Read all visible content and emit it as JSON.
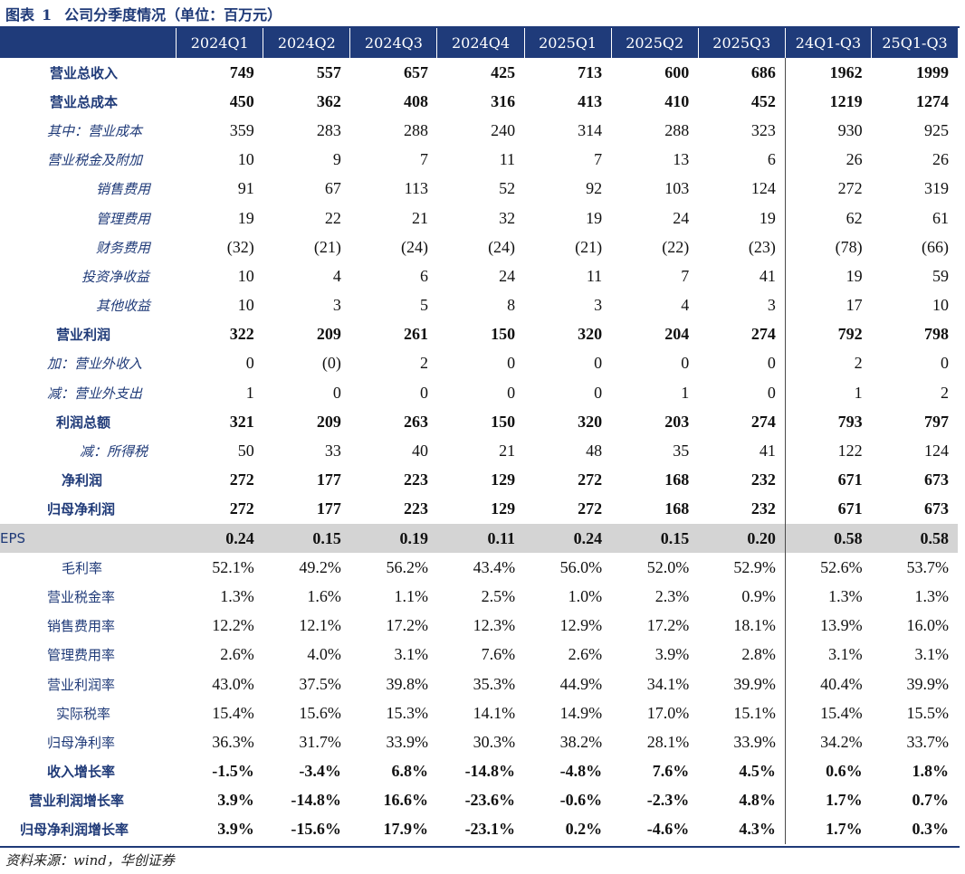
{
  "title": {
    "prefix": "图表",
    "number": "1",
    "text": "公司分季度情况（单位：百万元）"
  },
  "columns": [
    "2024Q1",
    "2024Q2",
    "2024Q3",
    "2024Q4",
    "2025Q1",
    "2025Q2",
    "2025Q3",
    "24Q1-Q3",
    "25Q1-Q3"
  ],
  "rows": [
    {
      "label": "营业总收入",
      "style": "bold",
      "indent": 55,
      "values": [
        "749",
        "557",
        "657",
        "425",
        "713",
        "600",
        "686",
        "1962",
        "1999"
      ]
    },
    {
      "label": "营业总成本",
      "style": "bold",
      "indent": 55,
      "values": [
        "450",
        "362",
        "408",
        "316",
        "413",
        "410",
        "452",
        "1219",
        "1274"
      ]
    },
    {
      "label": "其中：营业成本",
      "style": "italic",
      "indent": 52,
      "values": [
        "359",
        "283",
        "288",
        "240",
        "314",
        "288",
        "323",
        "930",
        "925"
      ]
    },
    {
      "label": "营业税金及附加",
      "style": "italic",
      "indent": 52,
      "values": [
        "10",
        "9",
        "7",
        "11",
        "7",
        "13",
        "6",
        "26",
        "26"
      ]
    },
    {
      "label": "销售费用",
      "style": "italic",
      "indent": 106,
      "values": [
        "91",
        "67",
        "113",
        "52",
        "92",
        "103",
        "124",
        "272",
        "319"
      ]
    },
    {
      "label": "管理费用",
      "style": "italic",
      "indent": 106,
      "values": [
        "19",
        "22",
        "21",
        "32",
        "19",
        "24",
        "19",
        "62",
        "61"
      ]
    },
    {
      "label": "财务费用",
      "style": "italic",
      "indent": 106,
      "values": [
        "(32)",
        "(21)",
        "(24)",
        "(24)",
        "(21)",
        "(22)",
        "(23)",
        "(78)",
        "(66)"
      ]
    },
    {
      "label": "投资净收益",
      "style": "italic",
      "indent": 90,
      "values": [
        "10",
        "4",
        "6",
        "24",
        "11",
        "7",
        "41",
        "19",
        "59"
      ]
    },
    {
      "label": "其他收益",
      "style": "italic",
      "indent": 106,
      "values": [
        "10",
        "3",
        "5",
        "8",
        "3",
        "4",
        "3",
        "17",
        "10"
      ]
    },
    {
      "label": "营业利润",
      "style": "bold",
      "indent": 62,
      "values": [
        "322",
        "209",
        "261",
        "150",
        "320",
        "204",
        "274",
        "792",
        "798"
      ]
    },
    {
      "label": "加：营业外收入",
      "style": "italic",
      "indent": 52,
      "values": [
        "0",
        "(0)",
        "2",
        "0",
        "0",
        "0",
        "0",
        "2",
        "0"
      ]
    },
    {
      "label": "减：营业外支出",
      "style": "italic",
      "indent": 52,
      "values": [
        "1",
        "0",
        "0",
        "0",
        "0",
        "1",
        "0",
        "1",
        "2"
      ]
    },
    {
      "label": "利润总额",
      "style": "bold",
      "indent": 62,
      "values": [
        "321",
        "209",
        "263",
        "150",
        "320",
        "203",
        "274",
        "793",
        "797"
      ]
    },
    {
      "label": "减：所得税",
      "style": "italic",
      "indent": 88,
      "values": [
        "50",
        "33",
        "40",
        "21",
        "48",
        "35",
        "41",
        "122",
        "124"
      ]
    },
    {
      "label": "净利润",
      "style": "bold",
      "indent": 68,
      "values": [
        "272",
        "177",
        "223",
        "129",
        "272",
        "168",
        "232",
        "671",
        "673"
      ]
    },
    {
      "label": "归母净利润",
      "style": "bold",
      "indent": 52,
      "values": [
        "272",
        "177",
        "223",
        "129",
        "272",
        "168",
        "232",
        "671",
        "673"
      ]
    },
    {
      "label": "EPS",
      "style": "eps",
      "indent": 0,
      "values": [
        "0.24",
        "0.15",
        "0.19",
        "0.11",
        "0.24",
        "0.15",
        "0.20",
        "0.58",
        "0.58"
      ]
    },
    {
      "label": "毛利率",
      "style": "normal",
      "indent": 68,
      "values": [
        "52.1%",
        "49.2%",
        "56.2%",
        "43.4%",
        "56.0%",
        "52.0%",
        "52.9%",
        "52.6%",
        "53.7%"
      ]
    },
    {
      "label": "营业税金率",
      "style": "normal",
      "indent": 52,
      "values": [
        "1.3%",
        "1.6%",
        "1.1%",
        "2.5%",
        "1.0%",
        "2.3%",
        "0.9%",
        "1.3%",
        "1.3%"
      ]
    },
    {
      "label": "销售费用率",
      "style": "normal",
      "indent": 52,
      "values": [
        "12.2%",
        "12.1%",
        "17.2%",
        "12.3%",
        "12.9%",
        "17.2%",
        "18.1%",
        "13.9%",
        "16.0%"
      ]
    },
    {
      "label": "管理费用率",
      "style": "normal",
      "indent": 52,
      "values": [
        "2.6%",
        "4.0%",
        "3.1%",
        "7.6%",
        "2.6%",
        "3.9%",
        "2.8%",
        "3.1%",
        "3.1%"
      ]
    },
    {
      "label": "营业利润率",
      "style": "normal",
      "indent": 52,
      "values": [
        "43.0%",
        "37.5%",
        "39.8%",
        "35.3%",
        "44.9%",
        "34.1%",
        "39.9%",
        "40.4%",
        "39.9%"
      ]
    },
    {
      "label": "实际税率",
      "style": "normal",
      "indent": 62,
      "values": [
        "15.4%",
        "15.6%",
        "15.3%",
        "14.1%",
        "14.9%",
        "17.0%",
        "15.1%",
        "15.4%",
        "15.5%"
      ]
    },
    {
      "label": "归母净利率",
      "style": "normal",
      "indent": 52,
      "values": [
        "36.3%",
        "31.7%",
        "33.9%",
        "30.3%",
        "38.2%",
        "28.1%",
        "33.9%",
        "34.2%",
        "33.7%"
      ]
    },
    {
      "label": "收入增长率",
      "style": "bold",
      "indent": 52,
      "values": [
        "-1.5%",
        "-3.4%",
        "6.8%",
        "-14.8%",
        "-4.8%",
        "7.6%",
        "4.5%",
        "0.6%",
        "1.8%"
      ]
    },
    {
      "label": "营业利润增长率",
      "style": "bold",
      "indent": 32,
      "values": [
        "3.9%",
        "-14.8%",
        "16.6%",
        "-23.6%",
        "-0.6%",
        "-2.3%",
        "4.8%",
        "1.7%",
        "0.7%"
      ]
    },
    {
      "label": "归母净利润增长率",
      "style": "bold",
      "indent": 22,
      "values": [
        "3.9%",
        "-15.6%",
        "17.9%",
        "-23.1%",
        "0.2%",
        "-4.6%",
        "4.3%",
        "1.7%",
        "0.3%"
      ]
    }
  ],
  "source": "资料来源：wind，华创证券",
  "colors": {
    "header_bg": "#1f3b7a",
    "label_text": "#1f3a78",
    "negative": "#e00000",
    "eps_bg": "#d4d4d4"
  }
}
